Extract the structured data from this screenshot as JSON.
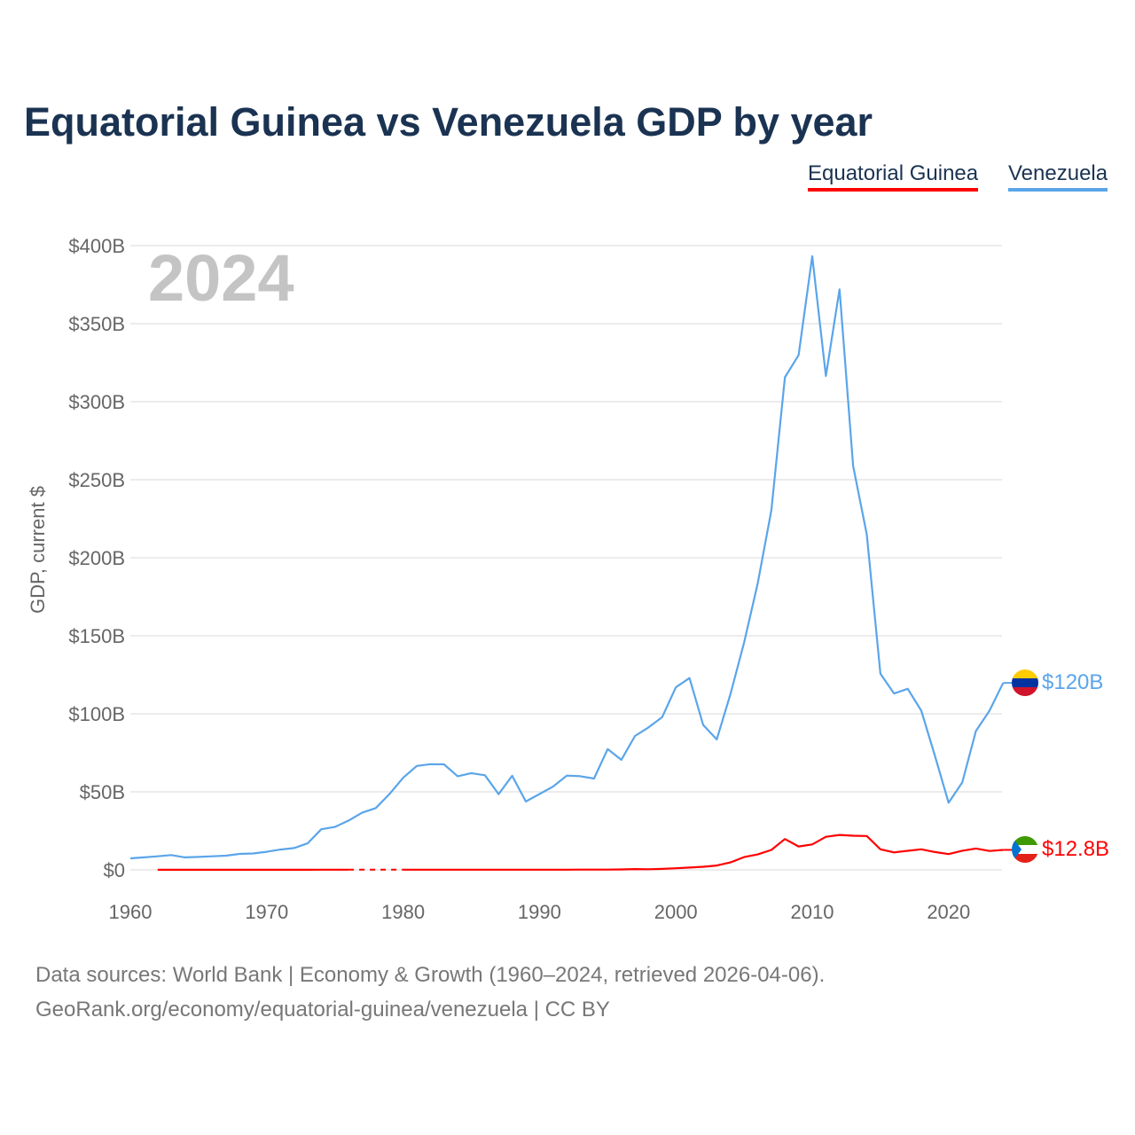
{
  "chart_data": {
    "type": "line",
    "title": "Equatorial Guinea vs Venezuela GDP by year",
    "ylabel": "GDP, current $",
    "xlabel": "",
    "year_label": "2024",
    "xlim": [
      1960,
      2024
    ],
    "ylim": [
      0,
      400
    ],
    "y_unit": "billion USD",
    "x_ticks": [
      "1960",
      "1970",
      "1980",
      "1990",
      "2000",
      "2010",
      "2020"
    ],
    "y_ticks": [
      "$0",
      "$50B",
      "$100B",
      "$150B",
      "$200B",
      "$250B",
      "$300B",
      "$350B",
      "$400B"
    ],
    "grid": true,
    "legend_placement": "top-right",
    "x": [
      1960,
      1961,
      1962,
      1963,
      1964,
      1965,
      1966,
      1967,
      1968,
      1969,
      1970,
      1971,
      1972,
      1973,
      1974,
      1975,
      1976,
      1977,
      1978,
      1979,
      1980,
      1981,
      1982,
      1983,
      1984,
      1985,
      1986,
      1987,
      1988,
      1989,
      1990,
      1991,
      1992,
      1993,
      1994,
      1995,
      1996,
      1997,
      1998,
      1999,
      2000,
      2001,
      2002,
      2003,
      2004,
      2005,
      2006,
      2007,
      2008,
      2009,
      2010,
      2011,
      2012,
      2013,
      2014,
      2015,
      2016,
      2017,
      2018,
      2019,
      2020,
      2021,
      2022,
      2023,
      2024
    ],
    "series": [
      {
        "name": "Equatorial Guinea",
        "color": "#ff0000",
        "end_label": "$12.8B",
        "values": [
          null,
          null,
          0.03,
          0.03,
          0.04,
          0.04,
          0.05,
          0.05,
          0.06,
          0.06,
          0.06,
          0.07,
          0.07,
          0.08,
          0.09,
          0.1,
          0.1,
          null,
          null,
          null,
          0.1,
          0.11,
          0.11,
          0.11,
          0.12,
          0.13,
          0.14,
          0.14,
          0.14,
          0.14,
          0.13,
          0.13,
          0.14,
          0.15,
          0.15,
          0.16,
          0.28,
          0.5,
          0.37,
          0.62,
          1.05,
          1.5,
          2.0,
          2.8,
          4.8,
          8.2,
          9.9,
          12.8,
          19.8,
          15.0,
          16.3,
          21.2,
          22.4,
          21.9,
          21.7,
          13.2,
          11.2,
          12.2,
          13.2,
          11.4,
          10.1,
          12.3,
          13.7,
          12.1,
          12.8
        ]
      },
      {
        "name": "Venezuela",
        "color": "#5aa5ea",
        "end_label": "$120B",
        "values": [
          7.4,
          8.0,
          8.7,
          9.5,
          8.0,
          8.3,
          8.7,
          9.1,
          10.2,
          10.5,
          11.6,
          13.0,
          14.0,
          17.0,
          26.0,
          27.5,
          31.6,
          36.7,
          39.6,
          48.6,
          59.0,
          66.6,
          67.7,
          67.6,
          60.0,
          62.0,
          60.6,
          48.5,
          60.3,
          43.8,
          48.6,
          53.4,
          60.4,
          60.0,
          58.5,
          77.4,
          70.5,
          85.8,
          91.3,
          97.9,
          117.0,
          122.9,
          92.9,
          83.6,
          112.5,
          145.5,
          183.5,
          230.4,
          315.6,
          329.8,
          393.2,
          316.5,
          372.0,
          258.9,
          215.0,
          125.7,
          113.0,
          116.0,
          102.0,
          73.0,
          43.0,
          56.0,
          89.0,
          102.0,
          119.8
        ]
      }
    ]
  },
  "footer": {
    "line1": "Data sources: World Bank | Economy & Growth (1960–2024, retrieved 2026-04-06).",
    "line2": "GeoRank.org/economy/equatorial-guinea/venezuela | CC BY"
  }
}
